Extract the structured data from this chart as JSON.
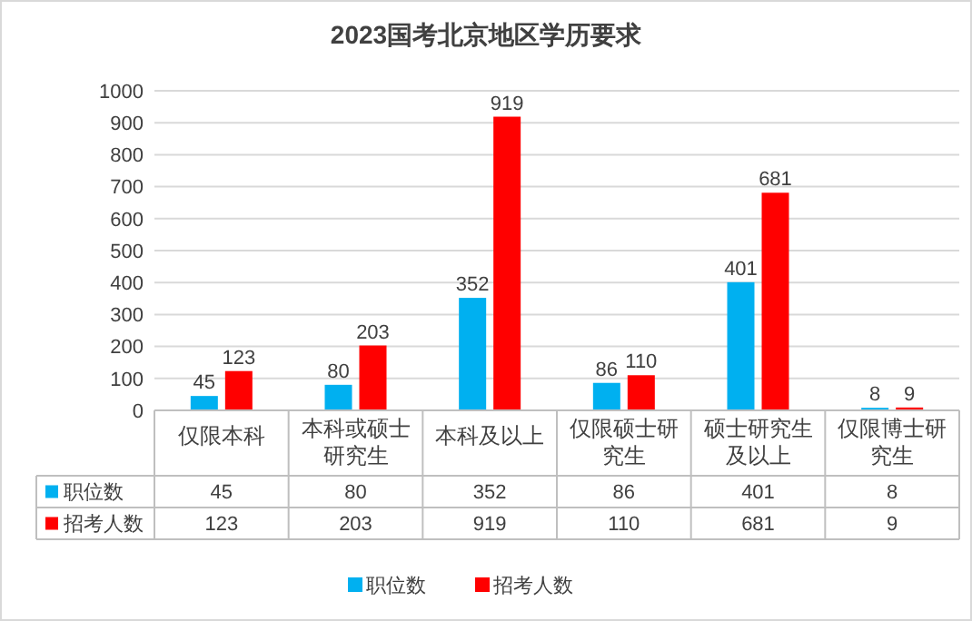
{
  "chart_data": {
    "type": "bar",
    "title": "2023国考北京地区学历要求",
    "categories": [
      "仅限本科",
      "本科或硕士研究生",
      "本科及以上",
      "仅限硕士研究生",
      "硕士研究生及以上",
      "仅限博士研究生"
    ],
    "series": [
      {
        "name": "职位数",
        "color": "#00b0f0",
        "values": [
          45,
          80,
          352,
          86,
          401,
          8
        ],
        "value_labels": [
          "45",
          "80",
          "352",
          "86",
          "401",
          "8"
        ]
      },
      {
        "name": "招考人数",
        "color": "#ff0000",
        "values": [
          123,
          203,
          919,
          110,
          681,
          9
        ],
        "value_labels": [
          "123",
          "203",
          "919",
          "110",
          "681",
          "9"
        ]
      }
    ],
    "ylim": [
      0,
      1000
    ],
    "yticks": [
      0,
      100,
      200,
      300,
      400,
      500,
      600,
      700,
      800,
      900,
      1000
    ],
    "grid": "y",
    "data_labels": true,
    "legend": "bottom"
  }
}
